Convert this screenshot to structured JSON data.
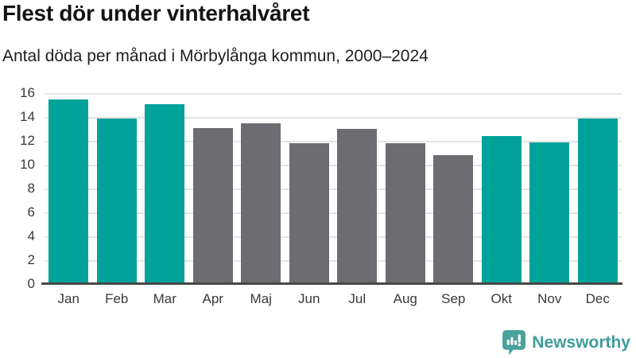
{
  "chart_data": {
    "type": "bar",
    "title": "Flest dör under vinterhalvåret",
    "subtitle": "Antal döda per månad i Mörbylånga kommun, 2000–2024",
    "categories": [
      "Jan",
      "Feb",
      "Mar",
      "Apr",
      "Maj",
      "Jun",
      "Jul",
      "Aug",
      "Sep",
      "Okt",
      "Nov",
      "Dec"
    ],
    "values": [
      15.5,
      13.9,
      15.1,
      13.1,
      13.5,
      11.8,
      13.0,
      11.8,
      10.8,
      12.4,
      11.9,
      13.9
    ],
    "bar_colors": [
      "teal",
      "teal",
      "teal",
      "gray",
      "gray",
      "gray",
      "gray",
      "gray",
      "gray",
      "teal",
      "teal",
      "teal"
    ],
    "palette": {
      "teal": "#00a29a",
      "gray": "#6d6d71"
    },
    "xlabel": "",
    "ylabel": "",
    "ylim": [
      0,
      16
    ],
    "yticks": [
      0,
      2,
      4,
      6,
      8,
      10,
      12,
      14,
      16
    ],
    "grid": true,
    "legend": false
  },
  "footer": {
    "brand": "Newsworthy",
    "logo_icon": "newsworthy-speech-bubble-chart-icon",
    "brand_color": "#3f9d99"
  },
  "colors": {
    "accent_teal": "#00a29a",
    "bar_gray": "#6d6d71",
    "gridline": "#e4e4e4",
    "axis": "#474747",
    "text_dark": "#141414"
  }
}
